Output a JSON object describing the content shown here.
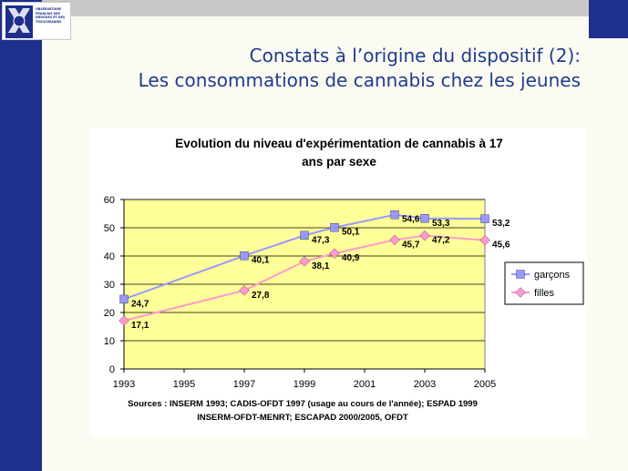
{
  "logo": {
    "text": "OBSERVATOIRE\nFRANÇAIS DES\nDROGUES ET DES\nTOXICOMANIES",
    "abbr": "OFDT"
  },
  "slide": {
    "title_line1": "Constats à l’origine du dispositif (2):",
    "title_line2": "Les consommations de cannabis chez les jeunes"
  },
  "chart_data": {
    "type": "line",
    "title_line1": "Evolution du niveau d'expérimentation de cannabis à 17",
    "title_line2": "ans par sexe",
    "x_ticks": [
      "1993",
      "1995",
      "1997",
      "1999",
      "2001",
      "2003",
      "2005"
    ],
    "y_ticks": [
      "0",
      "10",
      "20",
      "30",
      "40",
      "50",
      "60"
    ],
    "xlim": [
      1993,
      2005
    ],
    "ylim": [
      0,
      60
    ],
    "grid": true,
    "legend_position": "right",
    "plot_background": "#ffff99",
    "series": [
      {
        "name": "garçons",
        "color": "#9999ff",
        "marker": "square",
        "x": [
          1993,
          1997,
          1999,
          2000,
          2002,
          2003,
          2005
        ],
        "y": [
          24.7,
          40.1,
          47.3,
          50.1,
          54.6,
          53.3,
          53.2
        ],
        "labels": [
          "24,7",
          "40,1",
          "47,3",
          "50,1",
          "54,6",
          "53,3",
          "53,2"
        ]
      },
      {
        "name": "filles",
        "color": "#ff99cc",
        "marker": "diamond",
        "x": [
          1993,
          1997,
          1999,
          2000,
          2002,
          2003,
          2005
        ],
        "y": [
          17.1,
          27.8,
          38.1,
          40.9,
          45.7,
          47.2,
          45.6
        ],
        "labels": [
          "17,1",
          "27,8",
          "38,1",
          "40,9",
          "45,7",
          "47,2",
          "45,6"
        ]
      }
    ],
    "source_line1": "Sources : INSERM 1993; CADIS-OFDT 1997 (usage au cours de l'année); ESPAD 1999",
    "source_line2": "INSERM-OFDT-MENRT; ESCAPAD 2000/2005, OFDT"
  }
}
